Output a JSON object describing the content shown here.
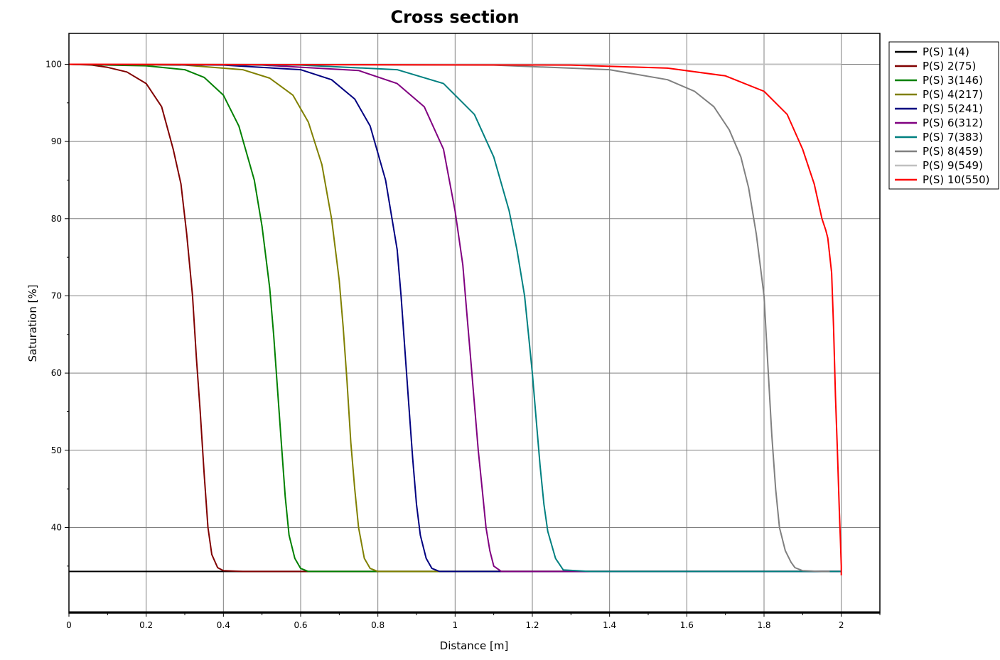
{
  "chart_data": {
    "type": "line",
    "title": "Cross section",
    "xlabel": "Distance [m]",
    "ylabel": "Saturation [%]",
    "xlim": [
      0,
      2.1
    ],
    "ylim": [
      29,
      104
    ],
    "xticks": [
      0,
      0.2,
      0.4,
      0.6,
      0.8,
      1,
      1.2,
      1.4,
      1.6,
      1.8,
      2
    ],
    "xtick_labels": [
      "0",
      "0.2",
      "0.4",
      "0.6",
      "0.8",
      "1",
      "1.2",
      "1.4",
      "1.6",
      "1.8",
      "2"
    ],
    "yticks": [
      40,
      50,
      60,
      70,
      80,
      90,
      100
    ],
    "ytick_labels": [
      "40",
      "50",
      "60",
      "70",
      "80",
      "90",
      "100"
    ],
    "grid": true,
    "legend_position": "right-top-outside",
    "series": [
      {
        "name": "P(S) 1(4)",
        "color": "#000000",
        "x": [
          0,
          2
        ],
        "y": [
          34.3,
          34.3
        ]
      },
      {
        "name": "P(S) 2(75)",
        "color": "#800000",
        "x": [
          0,
          0.06,
          0.1,
          0.15,
          0.2,
          0.24,
          0.27,
          0.29,
          0.305,
          0.32,
          0.33,
          0.34,
          0.35,
          0.36,
          0.37,
          0.385,
          0.4,
          0.45,
          2
        ],
        "y": [
          100,
          99.9,
          99.6,
          99.0,
          97.5,
          94.5,
          89.0,
          84.5,
          78.0,
          70.0,
          62.0,
          55.0,
          47.0,
          40.0,
          36.5,
          34.8,
          34.4,
          34.3,
          34.3
        ]
      },
      {
        "name": "P(S) 3(146)",
        "color": "#008000",
        "x": [
          0,
          0.2,
          0.3,
          0.35,
          0.4,
          0.44,
          0.48,
          0.5,
          0.52,
          0.53,
          0.54,
          0.55,
          0.56,
          0.57,
          0.585,
          0.6,
          0.62,
          0.7,
          2
        ],
        "y": [
          100,
          99.8,
          99.3,
          98.3,
          96.0,
          92.0,
          85.0,
          79.0,
          71.0,
          65.0,
          58.0,
          51.0,
          44.0,
          39.0,
          36.0,
          34.7,
          34.3,
          34.3,
          34.3
        ]
      },
      {
        "name": "P(S) 4(217)",
        "color": "#808000",
        "x": [
          0,
          0.3,
          0.45,
          0.52,
          0.58,
          0.62,
          0.655,
          0.68,
          0.7,
          0.71,
          0.72,
          0.73,
          0.74,
          0.75,
          0.765,
          0.78,
          0.8,
          0.9,
          2
        ],
        "y": [
          100,
          99.9,
          99.3,
          98.2,
          96.0,
          92.5,
          87.0,
          80.0,
          72.0,
          66.0,
          59.0,
          51.0,
          45.0,
          40.0,
          36.0,
          34.7,
          34.3,
          34.3,
          34.3
        ]
      },
      {
        "name": "P(S) 5(241)",
        "color": "#000080",
        "x": [
          0,
          0.4,
          0.6,
          0.68,
          0.74,
          0.78,
          0.82,
          0.85,
          0.86,
          0.87,
          0.88,
          0.89,
          0.9,
          0.91,
          0.925,
          0.94,
          0.96,
          1.05,
          2
        ],
        "y": [
          100,
          99.9,
          99.3,
          98.0,
          95.5,
          92.0,
          85.0,
          76.0,
          70.0,
          63.0,
          56.0,
          49.0,
          43.0,
          39.0,
          36.0,
          34.7,
          34.3,
          34.3,
          34.3
        ]
      },
      {
        "name": "P(S) 6(312)",
        "color": "#800080",
        "x": [
          0,
          0.5,
          0.75,
          0.85,
          0.92,
          0.97,
          1.0,
          1.02,
          1.03,
          1.04,
          1.05,
          1.06,
          1.07,
          1.08,
          1.09,
          1.1,
          1.12,
          1.2,
          2
        ],
        "y": [
          100,
          99.9,
          99.2,
          97.5,
          94.5,
          89.0,
          81.0,
          74.0,
          68.0,
          62.0,
          56.0,
          50.0,
          45.0,
          40.0,
          37.0,
          35.0,
          34.3,
          34.3,
          34.3
        ]
      },
      {
        "name": "P(S) 7(383)",
        "color": "#008080",
        "x": [
          0,
          0.6,
          0.85,
          0.97,
          1.05,
          1.1,
          1.14,
          1.16,
          1.18,
          1.19,
          1.2,
          1.21,
          1.22,
          1.23,
          1.24,
          1.26,
          1.28,
          1.35,
          2
        ],
        "y": [
          100,
          99.9,
          99.3,
          97.5,
          93.5,
          88.0,
          81.0,
          76.0,
          70.0,
          65.0,
          60.0,
          54.0,
          48.0,
          43.0,
          39.5,
          36.0,
          34.5,
          34.3,
          34.3
        ]
      },
      {
        "name": "P(S) 8(459)",
        "color": "#808080",
        "x": [
          0,
          1.1,
          1.4,
          1.55,
          1.62,
          1.67,
          1.71,
          1.74,
          1.76,
          1.78,
          1.79,
          1.8,
          1.81,
          1.82,
          1.83,
          1.84,
          1.855,
          1.87,
          1.88,
          1.9,
          1.95,
          1.97
        ],
        "y": [
          100,
          99.9,
          99.3,
          98.0,
          96.5,
          94.5,
          91.5,
          88.0,
          84.0,
          78.0,
          74.0,
          70.0,
          61.0,
          52.0,
          45.0,
          40.0,
          37.0,
          35.5,
          34.8,
          34.4,
          34.3,
          34.3
        ]
      },
      {
        "name": "P(S) 9(549)",
        "color": "#c0c0c0",
        "x": [
          0,
          2
        ],
        "y": [
          100,
          100
        ]
      },
      {
        "name": "P(S) 10(550)",
        "color": "#ff0000",
        "x": [
          0,
          1.3,
          1.55,
          1.7,
          1.8,
          1.86,
          1.9,
          1.93,
          1.95,
          1.96,
          1.965,
          1.975,
          1.98,
          1.985,
          1.99,
          1.995,
          1.998,
          2.0,
          2.0
        ],
        "y": [
          100,
          99.9,
          99.5,
          98.5,
          96.5,
          93.5,
          89.0,
          84.5,
          80.0,
          78.5,
          77.5,
          73.0,
          66.0,
          57.0,
          50.0,
          42.0,
          38.0,
          35.0,
          33.8
        ]
      }
    ]
  }
}
